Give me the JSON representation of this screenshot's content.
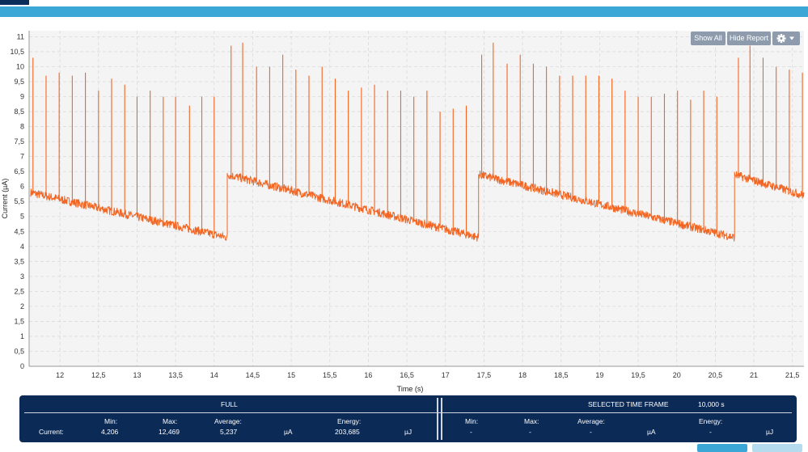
{
  "toolbar": {
    "show_all": "Show All",
    "hide_report": "Hide Report",
    "settings_icon": "gear-icon",
    "dropdown_icon": "chevron-down-icon"
  },
  "colors": {
    "header_blue": "#3aa7d6",
    "series": "#f26522",
    "report_bg": "#0b2a56",
    "plot_bg": "#f4f4f4",
    "button": "#8e9bad"
  },
  "chart_data": {
    "type": "line",
    "xlabel": "Time (s)",
    "ylabel": "Current (µA)",
    "xlim": [
      11.6,
      21.65
    ],
    "ylim": [
      0,
      11.2
    ],
    "grid": true,
    "x_ticks": [
      "12",
      "12,5",
      "13",
      "13,5",
      "14",
      "14,5",
      "15",
      "15,5",
      "16",
      "16,5",
      "17",
      "17,5",
      "18",
      "18,5",
      "19",
      "19,5",
      "20",
      "20,5",
      "21",
      "21,5"
    ],
    "y_ticks": [
      "0",
      "0,5",
      "1",
      "1,5",
      "2",
      "2,5",
      "3",
      "3,5",
      "4",
      "4,5",
      "5",
      "5,5",
      "6",
      "6,5",
      "7",
      "7,5",
      "8",
      "8,5",
      "9",
      "9,5",
      "10",
      "10,5",
      "11"
    ],
    "sawtooth_cycles": [
      {
        "x_start": 11.62,
        "y_start": 5.8,
        "x_end": 14.17,
        "y_end": 4.3
      },
      {
        "x_start": 14.17,
        "y_start": 6.4,
        "x_end": 17.43,
        "y_end": 4.3
      },
      {
        "x_start": 17.43,
        "y_start": 6.4,
        "x_end": 20.75,
        "y_end": 4.3
      },
      {
        "x_start": 20.75,
        "y_start": 6.4,
        "x_end": 21.65,
        "y_end": 5.7
      }
    ],
    "spikes": [
      {
        "x": 11.65,
        "y": 10.3
      },
      {
        "x": 11.82,
        "y": 9.7
      },
      {
        "x": 11.99,
        "y": 9.8
      },
      {
        "x": 12.16,
        "y": 9.7
      },
      {
        "x": 12.33,
        "y": 9.8
      },
      {
        "x": 12.5,
        "y": 9.2
      },
      {
        "x": 12.67,
        "y": 9.6
      },
      {
        "x": 12.84,
        "y": 9.4
      },
      {
        "x": 13.0,
        "y": 9.0
      },
      {
        "x": 13.17,
        "y": 9.2
      },
      {
        "x": 13.34,
        "y": 9.0
      },
      {
        "x": 13.5,
        "y": 9.0
      },
      {
        "x": 13.68,
        "y": 8.7
      },
      {
        "x": 13.84,
        "y": 9.0
      },
      {
        "x": 14.0,
        "y": 9.0
      },
      {
        "x": 14.22,
        "y": 10.7
      },
      {
        "x": 14.37,
        "y": 10.8
      },
      {
        "x": 14.55,
        "y": 10.0
      },
      {
        "x": 14.72,
        "y": 10.0
      },
      {
        "x": 14.89,
        "y": 10.4
      },
      {
        "x": 15.06,
        "y": 9.9
      },
      {
        "x": 15.23,
        "y": 9.7
      },
      {
        "x": 15.4,
        "y": 10.0
      },
      {
        "x": 15.57,
        "y": 9.6
      },
      {
        "x": 15.74,
        "y": 9.2
      },
      {
        "x": 15.91,
        "y": 9.3
      },
      {
        "x": 16.08,
        "y": 9.4
      },
      {
        "x": 16.25,
        "y": 9.2
      },
      {
        "x": 16.42,
        "y": 9.2
      },
      {
        "x": 16.59,
        "y": 9.0
      },
      {
        "x": 16.76,
        "y": 9.2
      },
      {
        "x": 16.93,
        "y": 8.5
      },
      {
        "x": 17.1,
        "y": 8.6
      },
      {
        "x": 17.27,
        "y": 8.7
      },
      {
        "x": 17.47,
        "y": 10.4
      },
      {
        "x": 17.62,
        "y": 10.8
      },
      {
        "x": 17.8,
        "y": 10.1
      },
      {
        "x": 17.97,
        "y": 10.4
      },
      {
        "x": 18.14,
        "y": 10.1
      },
      {
        "x": 18.31,
        "y": 10.0
      },
      {
        "x": 18.48,
        "y": 9.7
      },
      {
        "x": 18.65,
        "y": 9.7
      },
      {
        "x": 18.82,
        "y": 9.7
      },
      {
        "x": 18.99,
        "y": 9.7
      },
      {
        "x": 19.16,
        "y": 9.6
      },
      {
        "x": 19.33,
        "y": 9.2
      },
      {
        "x": 19.5,
        "y": 9.0
      },
      {
        "x": 19.67,
        "y": 9.0
      },
      {
        "x": 19.84,
        "y": 9.1
      },
      {
        "x": 20.01,
        "y": 9.2
      },
      {
        "x": 20.18,
        "y": 8.9
      },
      {
        "x": 20.35,
        "y": 9.2
      },
      {
        "x": 20.52,
        "y": 9.0
      },
      {
        "x": 20.8,
        "y": 10.3
      },
      {
        "x": 20.95,
        "y": 10.7
      },
      {
        "x": 21.12,
        "y": 10.3
      },
      {
        "x": 21.29,
        "y": 10.0
      },
      {
        "x": 21.46,
        "y": 9.9
      },
      {
        "x": 21.63,
        "y": 9.8
      }
    ]
  },
  "report": {
    "full_label": "FULL",
    "selected_label": "SELECTED TIME FRAME",
    "selected_duration": "10,000 s",
    "row_label": "Current:",
    "full": {
      "min_label": "Min:",
      "min": "4,206",
      "max_label": "Max:",
      "max": "12,469",
      "avg_label": "Average:",
      "avg": "5,237",
      "avg_unit": "µA",
      "energy_label": "Energy:",
      "energy": "203,685",
      "energy_unit": "µJ"
    },
    "selected": {
      "min_label": "Min:",
      "min": "-",
      "max_label": "Max:",
      "max": "-",
      "avg_label": "Average:",
      "avg": "-",
      "avg_unit": "µA",
      "energy_label": "Energy:",
      "energy": "-",
      "energy_unit": "µJ"
    }
  }
}
